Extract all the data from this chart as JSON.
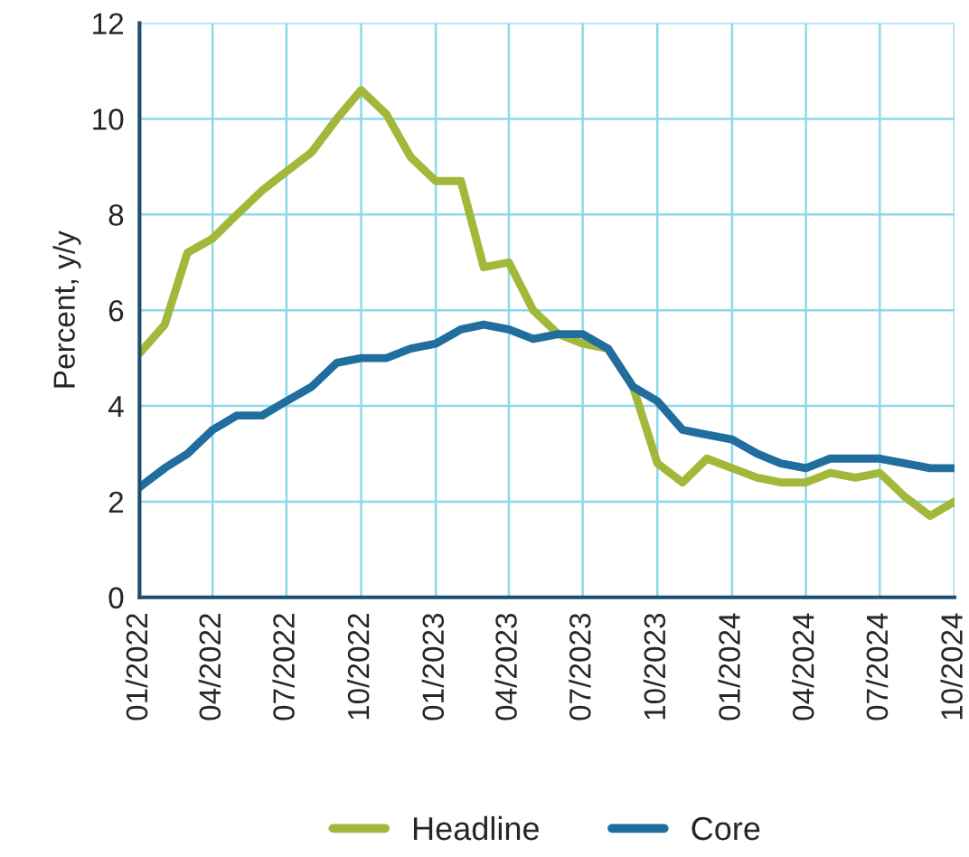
{
  "chart_data": {
    "type": "line",
    "ylabel": "Percent, y/y",
    "x": [
      "2022-01",
      "2022-02",
      "2022-03",
      "2022-04",
      "2022-05",
      "2022-06",
      "2022-07",
      "2022-08",
      "2022-09",
      "2022-10",
      "2022-11",
      "2022-12",
      "2023-01",
      "2023-02",
      "2023-03",
      "2023-04",
      "2023-05",
      "2023-06",
      "2023-07",
      "2023-08",
      "2023-09",
      "2023-10",
      "2023-11",
      "2023-12",
      "2024-01",
      "2024-02",
      "2024-03",
      "2024-04",
      "2024-05",
      "2024-06",
      "2024-07",
      "2024-08",
      "2024-09",
      "2024-10"
    ],
    "series": [
      {
        "name": "Headline",
        "color": "#a2b83a",
        "values": [
          5.1,
          5.7,
          7.2,
          7.5,
          8.0,
          8.5,
          8.9,
          9.3,
          10.0,
          10.6,
          10.1,
          9.2,
          8.7,
          8.7,
          6.9,
          7.0,
          6.0,
          5.5,
          5.3,
          5.2,
          4.4,
          2.8,
          2.4,
          2.9,
          2.7,
          2.5,
          2.4,
          2.4,
          2.6,
          2.5,
          2.6,
          2.1,
          1.7,
          2.0
        ]
      },
      {
        "name": "Core",
        "color": "#1f6e9e",
        "values": [
          2.3,
          2.7,
          3.0,
          3.5,
          3.8,
          3.8,
          4.1,
          4.4,
          4.9,
          5.0,
          5.0,
          5.2,
          5.3,
          5.6,
          5.7,
          5.6,
          5.4,
          5.5,
          5.5,
          5.2,
          4.4,
          4.1,
          3.5,
          3.4,
          3.3,
          3.0,
          2.8,
          2.7,
          2.9,
          2.9,
          2.9,
          2.8,
          2.7,
          2.7
        ]
      }
    ],
    "xlim": [
      "2022-01",
      "2024-10"
    ],
    "xticks": [
      {
        "value": "2022-01",
        "label": "01/2022"
      },
      {
        "value": "2022-04",
        "label": "04/2022"
      },
      {
        "value": "2022-07",
        "label": "07/2022"
      },
      {
        "value": "2022-10",
        "label": "10/2022"
      },
      {
        "value": "2023-01",
        "label": "01/2023"
      },
      {
        "value": "2023-04",
        "label": "04/2023"
      },
      {
        "value": "2023-07",
        "label": "07/2023"
      },
      {
        "value": "2023-10",
        "label": "10/2023"
      },
      {
        "value": "2024-01",
        "label": "01/2024"
      },
      {
        "value": "2024-04",
        "label": "04/2024"
      },
      {
        "value": "2024-07",
        "label": "07/2024"
      },
      {
        "value": "2024-10",
        "label": "10/2024"
      }
    ],
    "ylim": [
      0,
      12
    ],
    "yticks": [
      0,
      2,
      4,
      6,
      8,
      10,
      12
    ],
    "grid": true,
    "legend": "bottom",
    "marker": "none",
    "line_style": "solid"
  }
}
